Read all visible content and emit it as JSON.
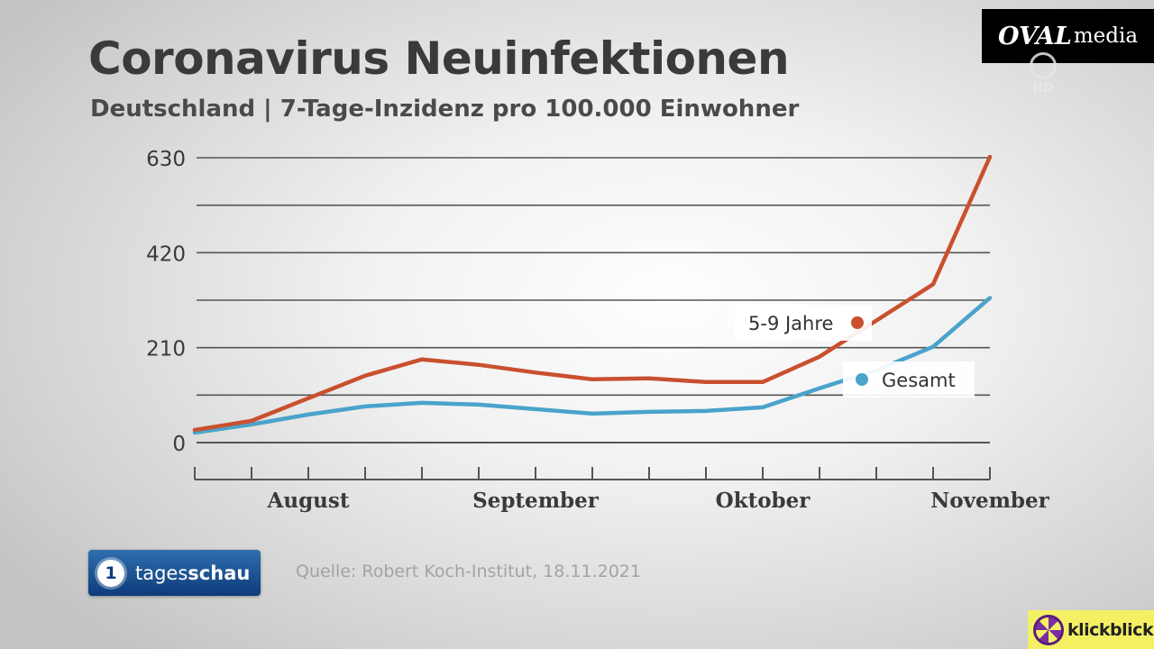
{
  "header": {
    "title": "Coronavirus Neuinfektionen",
    "subtitle": "Deutschland | 7-Tage-Inzidenz pro 100.000 Einwohner"
  },
  "chart_data": {
    "type": "line",
    "title": "Coronavirus Neuinfektionen",
    "subtitle": "Deutschland | 7-Tage-Inzidenz pro 100.000 Einwohner",
    "ylim": [
      0,
      630
    ],
    "yticks": [
      0,
      210,
      420,
      630
    ],
    "ytick_labels": [
      "0",
      "210",
      "420",
      "630"
    ],
    "y_gridlines": [
      0,
      105,
      210,
      315,
      420,
      525,
      630
    ],
    "xlim": [
      0,
      14
    ],
    "month_labels": [
      {
        "label": "August",
        "x": 2
      },
      {
        "label": "September",
        "x": 6
      },
      {
        "label": "Oktober",
        "x": 10
      },
      {
        "label": "November",
        "x": 14
      }
    ],
    "x": [
      0,
      1,
      2,
      3,
      4,
      5,
      6,
      7,
      8,
      9,
      10,
      11,
      12,
      13,
      14
    ],
    "series": [
      {
        "name": "5-9 Jahre",
        "color": "#c9502f",
        "values": [
          28,
          48,
          98,
          148,
          184,
          172,
          155,
          140,
          142,
          134,
          134,
          190,
          270,
          350,
          632
        ]
      },
      {
        "name": "Gesamt",
        "color": "#4aa3cb",
        "values": [
          22,
          40,
          62,
          80,
          88,
          84,
          74,
          64,
          68,
          70,
          78,
          120,
          160,
          212,
          320
        ]
      }
    ],
    "legend": "inline labels near line ends",
    "grid": true
  },
  "branding": {
    "oval_bold": "OVAL",
    "oval_rest": "media",
    "hd": "HD",
    "tagesschau_one": "1",
    "tagesschau_a": "tages",
    "tagesschau_b": "schau",
    "klickblick": "klickblick"
  },
  "footer": {
    "source": "Quelle: Robert Koch-Institut, 18.11.2021"
  }
}
